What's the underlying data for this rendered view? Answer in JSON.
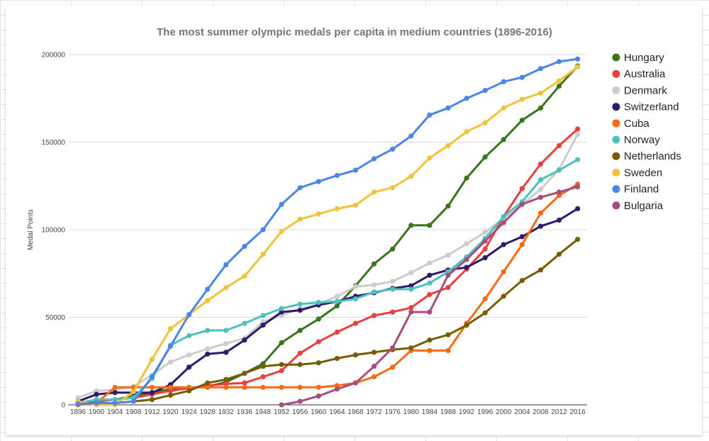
{
  "chart_data": {
    "type": "line",
    "title": "The most summer olympic medals per capita in medium countries (1896-2016)",
    "xlabel": "",
    "ylabel": "Medal Points",
    "ylim": [
      0,
      200000
    ],
    "yticks": [
      "0",
      "50000",
      "100000",
      "150000",
      "200000"
    ],
    "ytick_values": [
      0,
      50000,
      100000,
      150000,
      200000
    ],
    "categories": [
      "1896",
      "1900",
      "1904",
      "1908",
      "1912",
      "1920",
      "1924",
      "1928",
      "1932",
      "1936",
      "1948",
      "1952",
      "1956",
      "1960",
      "1964",
      "1968",
      "1972",
      "1976",
      "1980",
      "1984",
      "1988",
      "1992",
      "1996",
      "2000",
      "2004",
      "2008",
      "2012",
      "2016"
    ],
    "grid": true,
    "legend_position": "right",
    "series": [
      {
        "name": "Hungary",
        "color": "#38761d",
        "values": [
          1000,
          2000,
          3000,
          5000,
          7000,
          9000,
          9500,
          10500,
          13000,
          18000,
          23500,
          35500,
          42500,
          49000,
          56500,
          68000,
          80500,
          89000,
          102500,
          102500,
          113500,
          129500,
          141500,
          151500,
          162500,
          169500,
          182000,
          193500
        ]
      },
      {
        "name": "Australia",
        "color": "#e8403b",
        "values": [
          500,
          2000,
          3000,
          4000,
          6000,
          8000,
          9500,
          11000,
          12000,
          12500,
          16000,
          19500,
          29500,
          36000,
          41500,
          46500,
          51000,
          53000,
          55500,
          63000,
          67000,
          77500,
          89000,
          107500,
          123500,
          137500,
          148000,
          157500
        ]
      },
      {
        "name": "Denmark",
        "color": "#cccccc",
        "values": [
          4000,
          8000,
          8500,
          10500,
          17000,
          24500,
          28500,
          32000,
          35000,
          38000,
          47500,
          51000,
          55000,
          57500,
          62000,
          67500,
          68500,
          70500,
          75500,
          81000,
          85500,
          92000,
          98500,
          106500,
          114500,
          123000,
          134500,
          154500
        ]
      },
      {
        "name": "Switzerland",
        "color": "#2e1a6e",
        "values": [
          2000,
          6000,
          7000,
          7000,
          7000,
          11500,
          21500,
          29000,
          30000,
          37000,
          45500,
          53000,
          54000,
          57000,
          59000,
          62000,
          64000,
          66500,
          68000,
          74000,
          77000,
          78500,
          84000,
          91500,
          96000,
          102000,
          105500,
          112000
        ]
      },
      {
        "name": "Cuba",
        "color": "#fa6a12",
        "values": [
          0,
          1000,
          10000,
          10000,
          10000,
          10000,
          10000,
          10000,
          10000,
          10000,
          10000,
          10000,
          10000,
          10000,
          11000,
          12500,
          16000,
          21500,
          31000,
          31000,
          31000,
          46500,
          60500,
          76000,
          91500,
          109500,
          119500,
          126000
        ]
      },
      {
        "name": "Norway",
        "color": "#4dc0c0",
        "values": [
          1000,
          3000,
          3000,
          4000,
          15000,
          34000,
          39500,
          42500,
          42500,
          46500,
          51000,
          55000,
          57500,
          58500,
          59000,
          60500,
          64500,
          66000,
          66000,
          69500,
          76000,
          84500,
          95000,
          107500,
          116000,
          128500,
          134000,
          140000
        ]
      },
      {
        "name": "Netherlands",
        "color": "#7a5c00",
        "values": [
          1000,
          1000,
          1000,
          2000,
          3000,
          5500,
          8000,
          12500,
          14500,
          18000,
          22000,
          23000,
          23000,
          24000,
          26500,
          28500,
          30000,
          31500,
          32500,
          37000,
          40000,
          45500,
          52500,
          62000,
          71000,
          77000,
          86000,
          94500
        ]
      },
      {
        "name": "Sweden",
        "color": "#f2c33a",
        "values": [
          2000,
          0,
          0,
          7500,
          26000,
          43500,
          51500,
          59500,
          67000,
          73500,
          86000,
          99000,
          106000,
          109000,
          112000,
          114000,
          121500,
          124000,
          130500,
          141000,
          148000,
          156000,
          161000,
          169500,
          174500,
          178000,
          185000,
          193000
        ]
      },
      {
        "name": "Finland",
        "color": "#4a86e8",
        "values": [
          500,
          1000,
          1000,
          2000,
          16000,
          33500,
          51500,
          66000,
          80000,
          90500,
          100000,
          114500,
          124000,
          127500,
          131000,
          134000,
          140500,
          146000,
          153500,
          165500,
          169500,
          175000,
          179500,
          184500,
          187000,
          192000,
          196000,
          197500
        ]
      },
      {
        "name": "Bulgaria",
        "color": "#a84d7e",
        "values": [
          null,
          null,
          null,
          null,
          null,
          null,
          null,
          null,
          null,
          null,
          null,
          0,
          2000,
          5000,
          9000,
          12500,
          22000,
          32500,
          53000,
          53000,
          74000,
          83000,
          93500,
          104000,
          114500,
          118500,
          121500,
          124500
        ]
      }
    ]
  }
}
